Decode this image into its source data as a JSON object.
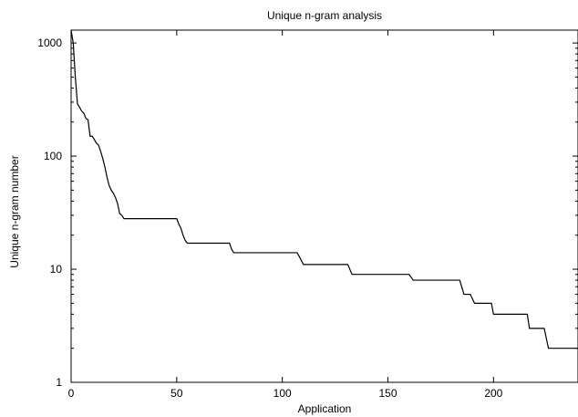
{
  "chart_data": {
    "type": "line",
    "title": "Unique n-gram analysis",
    "xlabel": "Application",
    "ylabel": "Unique n-gram number",
    "xlim": [
      0,
      240
    ],
    "ylim": [
      1,
      1300
    ],
    "y_scale": "log",
    "grid": false,
    "x_ticks": [
      0,
      50,
      100,
      150,
      200
    ],
    "x_tick_labels": [
      "0",
      "50",
      "100",
      "150",
      "200"
    ],
    "y_ticks": [
      1,
      10,
      100,
      1000
    ],
    "y_tick_labels": [
      "1",
      "10",
      "100",
      "1000"
    ],
    "line_color": "#000000",
    "series": [
      {
        "x": [
          0,
          1,
          2,
          3,
          4,
          5,
          6,
          7,
          8,
          9,
          10,
          11,
          12,
          13,
          14,
          15,
          16,
          17,
          18,
          19,
          20,
          21,
          22,
          23,
          24,
          25,
          26,
          50,
          51,
          52,
          53,
          54,
          55,
          56,
          57,
          75,
          76,
          77,
          107,
          108,
          110,
          111,
          131,
          133,
          134,
          160,
          162,
          184,
          186,
          189,
          191,
          199,
          200,
          216,
          217,
          224,
          226,
          240
        ],
        "y": [
          1300,
          1000,
          500,
          290,
          270,
          250,
          240,
          215,
          210,
          150,
          150,
          140,
          130,
          125,
          110,
          95,
          80,
          65,
          55,
          50,
          47,
          43,
          38,
          31,
          30,
          28,
          28,
          28,
          25,
          23,
          20,
          18,
          17,
          17,
          17,
          17,
          15,
          14,
          14,
          13,
          11,
          11,
          11,
          9,
          9,
          9,
          8,
          8,
          6,
          6,
          5,
          5,
          4,
          4,
          3,
          3,
          2,
          2
        ]
      }
    ]
  }
}
